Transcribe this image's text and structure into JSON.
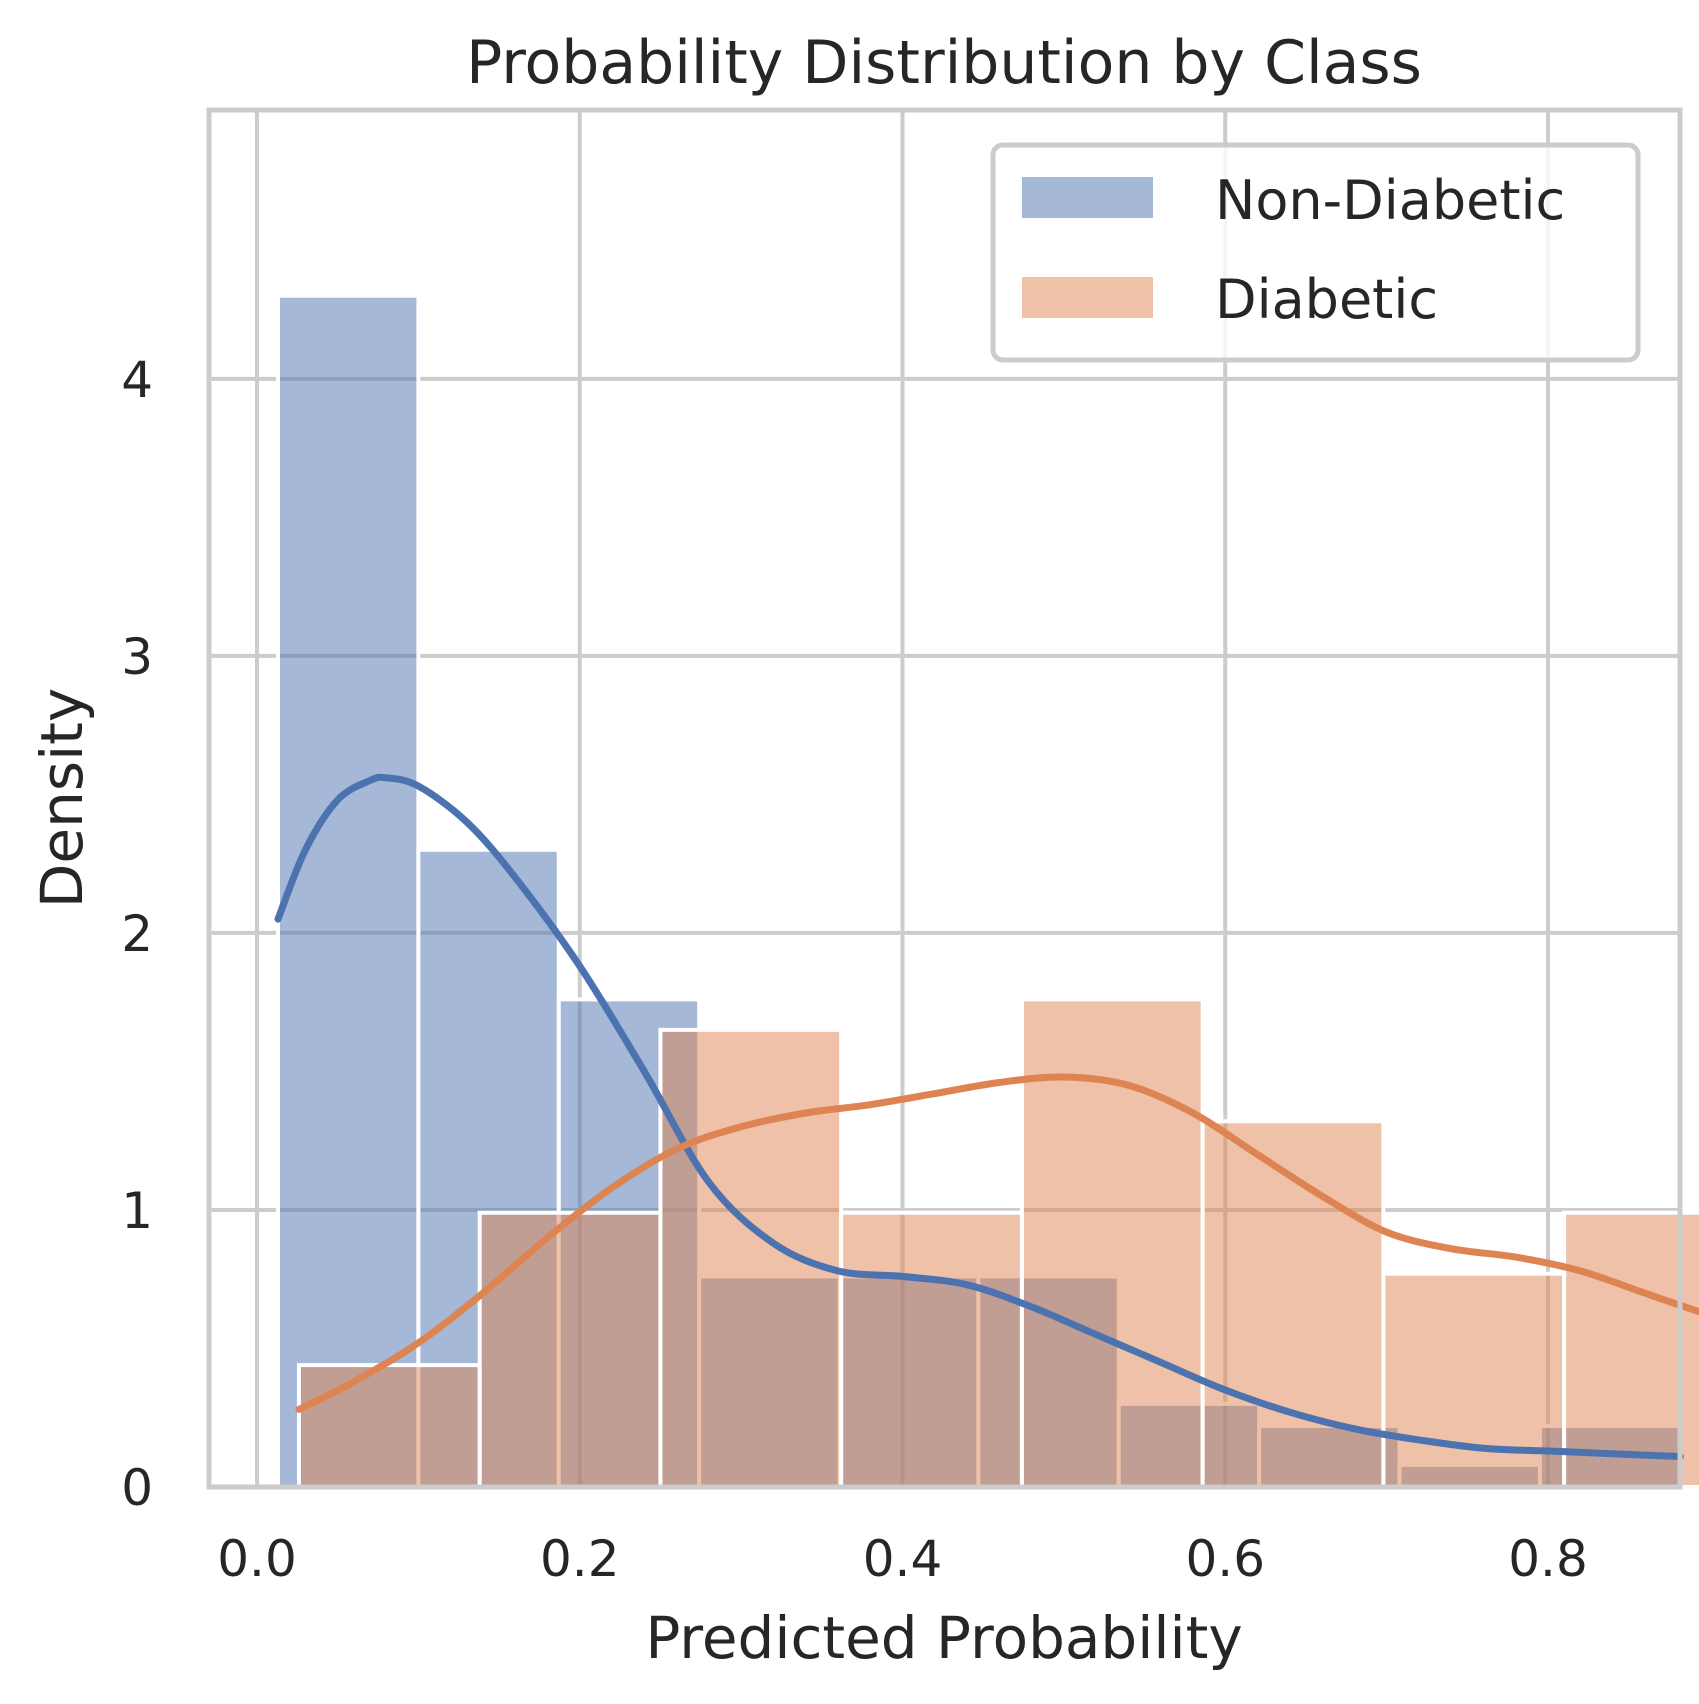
{
  "chart_data": {
    "type": "histogram",
    "title": "Probability Distribution by Class",
    "xlabel": "Predicted Probability",
    "ylabel": "Density",
    "xlim": [
      -0.04,
      1.0
    ],
    "ylim": [
      0,
      4.5
    ],
    "x_ticks": [
      "0.0",
      "0.2",
      "0.4",
      "0.6",
      "0.8"
    ],
    "x_tick_values": [
      0.0,
      0.2,
      0.4,
      0.6,
      0.8
    ],
    "y_ticks": [
      "0",
      "1",
      "2",
      "3",
      "4"
    ],
    "y_tick_values": [
      0,
      1,
      2,
      3,
      4
    ],
    "grid": true,
    "legend_position": "top-right",
    "series": [
      {
        "name": "Non-Diabetic",
        "color": "#4c72b0",
        "bins": [
          {
            "x0": 0.013,
            "x1": 0.1,
            "density": 4.3
          },
          {
            "x0": 0.1,
            "x1": 0.187,
            "density": 2.3
          },
          {
            "x0": 0.187,
            "x1": 0.274,
            "density": 1.76
          },
          {
            "x0": 0.274,
            "x1": 0.361,
            "density": 0.76
          },
          {
            "x0": 0.361,
            "x1": 0.447,
            "density": 0.76
          },
          {
            "x0": 0.447,
            "x1": 0.534,
            "density": 0.76
          },
          {
            "x0": 0.534,
            "x1": 0.621,
            "density": 0.3
          },
          {
            "x0": 0.621,
            "x1": 0.708,
            "density": 0.22
          },
          {
            "x0": 0.708,
            "x1": 0.795,
            "density": 0.08
          },
          {
            "x0": 0.795,
            "x1": 0.882,
            "density": 0.22
          }
        ],
        "kde": {
          "x": [
            0.013,
            0.03,
            0.05,
            0.07,
            0.08,
            0.1,
            0.13,
            0.16,
            0.2,
            0.24,
            0.28,
            0.32,
            0.36,
            0.4,
            0.44,
            0.48,
            0.52,
            0.56,
            0.6,
            0.64,
            0.68,
            0.72,
            0.76,
            0.8,
            0.84,
            0.882
          ],
          "y": [
            2.05,
            2.3,
            2.48,
            2.55,
            2.56,
            2.53,
            2.4,
            2.2,
            1.88,
            1.5,
            1.1,
            0.88,
            0.78,
            0.76,
            0.73,
            0.65,
            0.55,
            0.45,
            0.35,
            0.27,
            0.21,
            0.17,
            0.14,
            0.13,
            0.12,
            0.11
          ]
        }
      },
      {
        "name": "Diabetic",
        "color": "#dd8452",
        "bins": [
          {
            "x0": 0.026,
            "x1": 0.138,
            "density": 0.44
          },
          {
            "x0": 0.138,
            "x1": 0.25,
            "density": 0.99
          },
          {
            "x0": 0.25,
            "x1": 0.362,
            "density": 1.65
          },
          {
            "x0": 0.362,
            "x1": 0.474,
            "density": 0.99
          },
          {
            "x0": 0.474,
            "x1": 0.586,
            "density": 1.76
          },
          {
            "x0": 0.586,
            "x1": 0.698,
            "density": 1.32
          },
          {
            "x0": 0.698,
            "x1": 0.81,
            "density": 0.77
          },
          {
            "x0": 0.81,
            "x1": 0.922,
            "density": 0.99
          }
        ],
        "kde": {
          "x": [
            0.026,
            0.06,
            0.1,
            0.14,
            0.18,
            0.22,
            0.26,
            0.3,
            0.34,
            0.38,
            0.42,
            0.46,
            0.5,
            0.54,
            0.58,
            0.62,
            0.66,
            0.7,
            0.74,
            0.78,
            0.82,
            0.86,
            0.9,
            0.922
          ],
          "y": [
            0.28,
            0.38,
            0.52,
            0.7,
            0.9,
            1.08,
            1.22,
            1.3,
            1.35,
            1.38,
            1.42,
            1.46,
            1.48,
            1.45,
            1.35,
            1.2,
            1.05,
            0.92,
            0.86,
            0.83,
            0.78,
            0.7,
            0.62,
            0.58
          ]
        }
      }
    ]
  }
}
